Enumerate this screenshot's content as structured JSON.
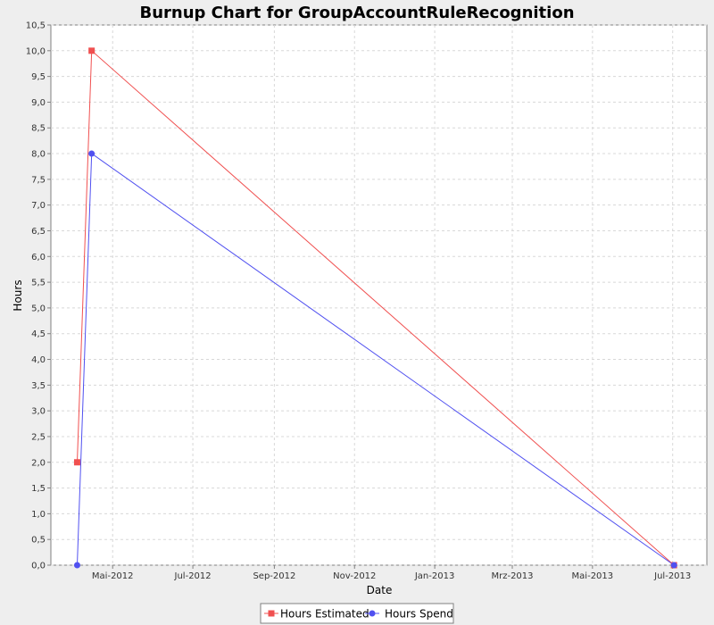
{
  "chart_data": {
    "type": "line",
    "title": "Burnup Chart for GroupAccountRuleRecognition",
    "xlabel": "Date",
    "ylabel": "Hours",
    "ylim": [
      0,
      10.5
    ],
    "xlim": [
      "2012-03-15",
      "2013-07-27"
    ],
    "y_ticks": [
      "0,0",
      "0,5",
      "1,0",
      "1,5",
      "2,0",
      "2,5",
      "3,0",
      "3,5",
      "4,0",
      "4,5",
      "5,0",
      "5,5",
      "6,0",
      "6,5",
      "7,0",
      "7,5",
      "8,0",
      "8,5",
      "9,0",
      "9,5",
      "10,0",
      "10,5"
    ],
    "x_ticks": [
      {
        "date": "2012-05-01",
        "label": "Mai-2012"
      },
      {
        "date": "2012-07-01",
        "label": "Jul-2012"
      },
      {
        "date": "2012-09-01",
        "label": "Sep-2012"
      },
      {
        "date": "2012-11-01",
        "label": "Nov-2012"
      },
      {
        "date": "2013-01-01",
        "label": "Jan-2013"
      },
      {
        "date": "2013-03-01",
        "label": "Mrz-2013"
      },
      {
        "date": "2013-05-01",
        "label": "Mai-2013"
      },
      {
        "date": "2013-07-01",
        "label": "Jul-2013"
      }
    ],
    "grid": true,
    "legend_position": "bottom",
    "series": [
      {
        "name": "Hours Estimated",
        "color": "#f05050",
        "marker": "square",
        "points": [
          {
            "x": "2012-04-04",
            "y": 2.0
          },
          {
            "x": "2012-04-15",
            "y": 10.0
          },
          {
            "x": "2013-07-02",
            "y": 0.0
          }
        ]
      },
      {
        "name": "Hours Spend",
        "color": "#5050f0",
        "marker": "circle",
        "points": [
          {
            "x": "2012-04-04",
            "y": 0.0
          },
          {
            "x": "2012-04-15",
            "y": 8.0
          },
          {
            "x": "2013-07-02",
            "y": 0.0
          }
        ]
      }
    ]
  }
}
